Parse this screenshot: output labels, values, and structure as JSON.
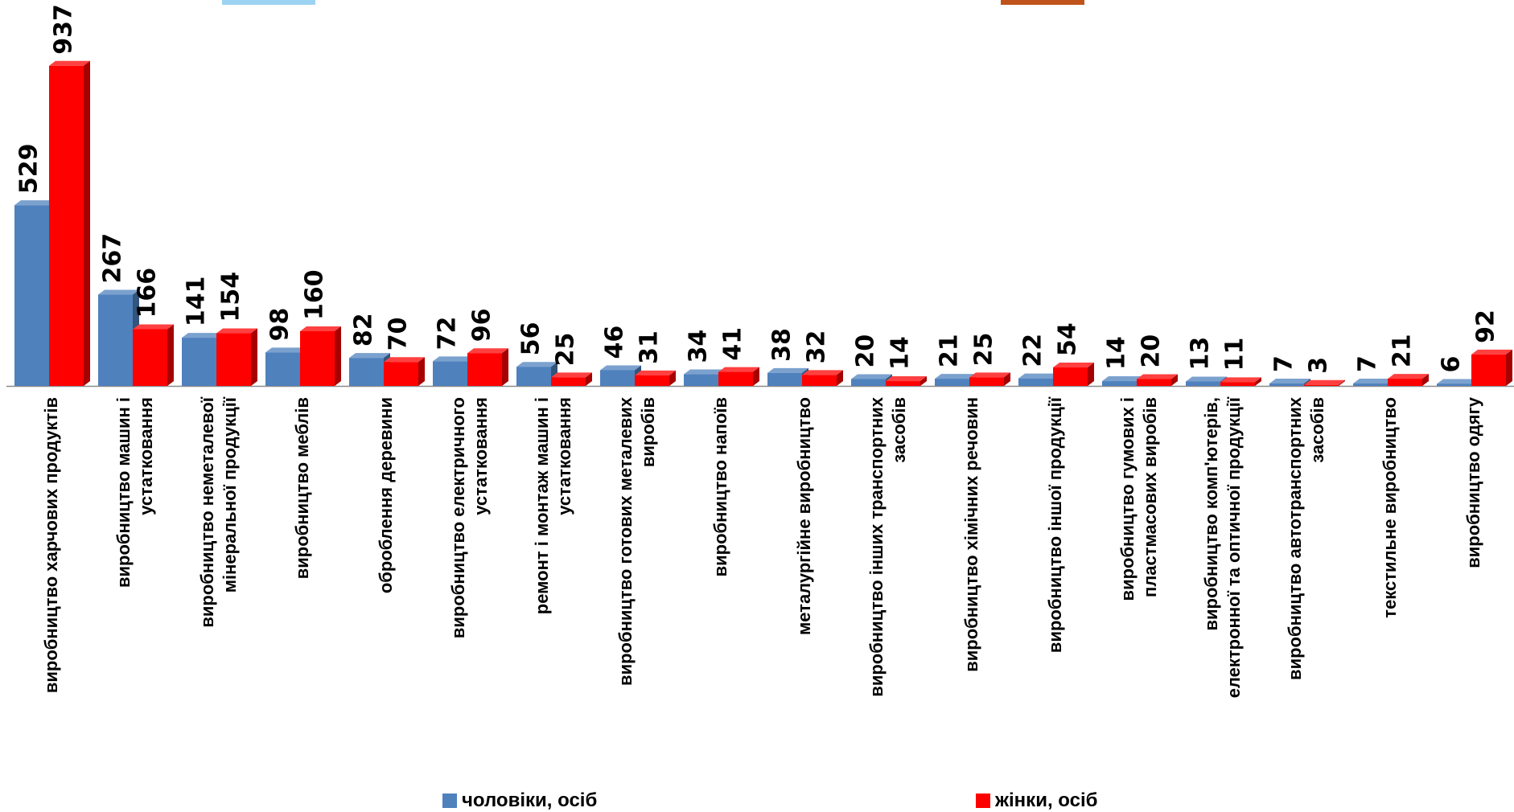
{
  "chart_data": {
    "type": "bar",
    "style": "3d-clustered",
    "categories": [
      [
        "виробництво харчових продуктів"
      ],
      [
        "виробництво машин і",
        "устатковання"
      ],
      [
        "виробництво неметалевої",
        "мінеральної продукції"
      ],
      [
        "виробництво меблів"
      ],
      [
        "оброблення  деревини"
      ],
      [
        "виробництво електричного",
        "устатковання"
      ],
      [
        "ремонт і монтаж машин і",
        "устатковання"
      ],
      [
        "виробництво готових металевих",
        "виробів"
      ],
      [
        "виробництво напоїв"
      ],
      [
        "металургійне виробництво"
      ],
      [
        "виробництво інших транспортних",
        "засобів"
      ],
      [
        "виробництво хімічних речовин"
      ],
      [
        "виробництво іншої продукції"
      ],
      [
        "виробництво гумових і",
        "пластмасових виробів"
      ],
      [
        "виробництво комп'ютерів,",
        "електронної та оптичної продукції"
      ],
      [
        "виробництво автотранспортних",
        "засобів"
      ],
      [
        "текстильне виробництво"
      ],
      [
        "виробництво одягу"
      ]
    ],
    "series": [
      {
        "name": "чоловіки, осіб",
        "color": "#4f81bd",
        "values": [
          529,
          267,
          141,
          98,
          82,
          72,
          56,
          46,
          34,
          38,
          20,
          21,
          22,
          14,
          13,
          7,
          7,
          6
        ]
      },
      {
        "name": "жінки, осіб",
        "color": "#ff0000",
        "values": [
          937,
          166,
          154,
          160,
          70,
          96,
          25,
          31,
          41,
          32,
          14,
          25,
          54,
          20,
          11,
          3,
          21,
          92
        ]
      }
    ],
    "ylim": [
      0,
      1000
    ],
    "grid": false,
    "legend_position": "bottom"
  }
}
